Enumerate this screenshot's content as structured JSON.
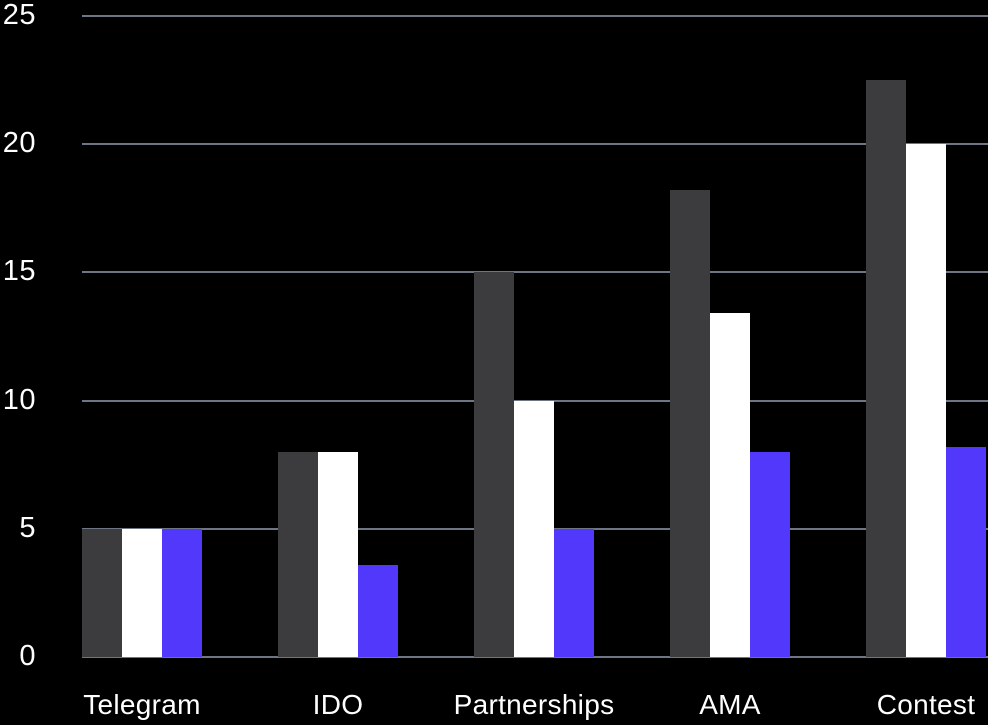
{
  "chart_data": {
    "type": "bar",
    "title": "",
    "categories": [
      "Telegram",
      "IDO",
      "Partnerships",
      "AMA",
      "Contest"
    ],
    "series": [
      {
        "name": "dark-gray",
        "color": "#3c3c3e",
        "values": [
          5,
          8,
          15,
          18.2,
          22.5
        ]
      },
      {
        "name": "white",
        "color": "#ffffff",
        "values": [
          5,
          8,
          10,
          13.4,
          20
        ]
      },
      {
        "name": "blue",
        "color": "#5238fa",
        "values": [
          5,
          3.6,
          5,
          8,
          8.2
        ]
      }
    ],
    "y_ticks": [
      0,
      5,
      10,
      15,
      20,
      25
    ],
    "ylim": [
      0,
      25
    ],
    "grid": true,
    "legend_position": "none",
    "xlabel": "",
    "ylabel": "",
    "colors": {
      "background": "#000000",
      "gridline": "#6e7685",
      "tick_label": "#ffffff"
    }
  }
}
